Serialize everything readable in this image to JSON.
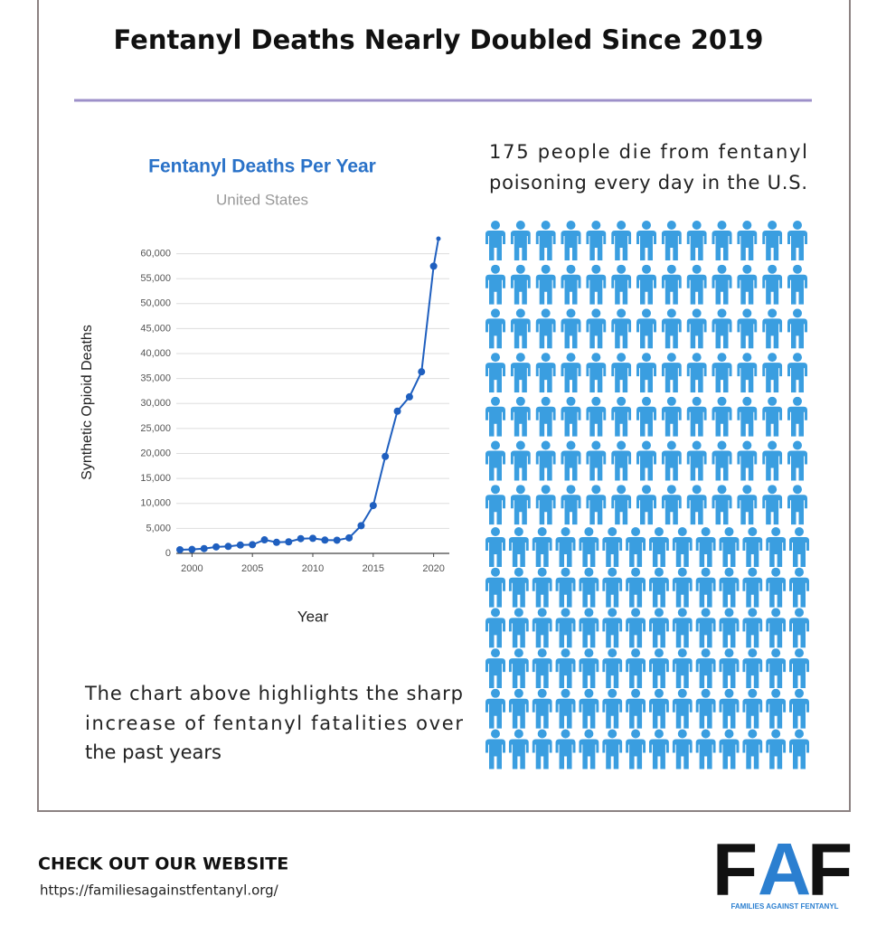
{
  "header": {
    "title": "Fentanyl Deaths Nearly Doubled Since 2019"
  },
  "chart_data": {
    "type": "line",
    "title": "Fentanyl Deaths Per Year",
    "subtitle": "United States",
    "x_label": "Year",
    "y_label": "Synthetic Opioid Deaths",
    "color": "#1f5fbf",
    "grid": true,
    "x": [
      1999,
      2000,
      2001,
      2002,
      2003,
      2004,
      2005,
      2006,
      2007,
      2008,
      2009,
      2010,
      2011,
      2012,
      2013,
      2014,
      2015,
      2016,
      2017,
      2018,
      2019,
      2020,
      2020.4
    ],
    "values": [
      730,
      782,
      957,
      1295,
      1400,
      1664,
      1742,
      2707,
      2213,
      2306,
      2946,
      3007,
      2666,
      2628,
      3105,
      5544,
      9580,
      19413,
      28466,
      31335,
      36359,
      57500,
      63000
    ],
    "xlim": [
      1998.7,
      2021.3
    ],
    "xticks": [
      2000,
      2005,
      2010,
      2015,
      2020
    ],
    "ylim": [
      0,
      63000
    ],
    "yticks": [
      0,
      {
        "value": 5000,
        "label": "5,000"
      },
      {
        "value": 10000,
        "label": "10,000"
      },
      {
        "value": 15000,
        "label": "15,000"
      },
      {
        "value": 20000,
        "label": "20,000"
      },
      {
        "value": 25000,
        "label": "25,000"
      },
      {
        "value": 30000,
        "label": "30,000"
      },
      {
        "value": 35000,
        "label": "35,000"
      },
      {
        "value": 40000,
        "label": "40,000"
      },
      {
        "value": 45000,
        "label": "45,000"
      },
      {
        "value": 50000,
        "label": "50,000"
      },
      {
        "value": 55000,
        "label": "55,000"
      },
      {
        "value": 60000,
        "label": "60,000"
      }
    ]
  },
  "stat_text": [
    "175 people die from fentanyl",
    "poisoning every day in the U.S."
  ],
  "caption": [
    "The chart above highlights the sharp",
    "increase of fentanyl fatalities over",
    "the past years"
  ],
  "footer": {
    "heading": "CHECK OUT OUR WEBSITE",
    "url": "https://familiesagainstfentanyl.org/"
  },
  "logo": {
    "letters": [
      "F",
      "A",
      "F"
    ],
    "tagline": "FAMILIES AGAINST FENTANYL"
  }
}
